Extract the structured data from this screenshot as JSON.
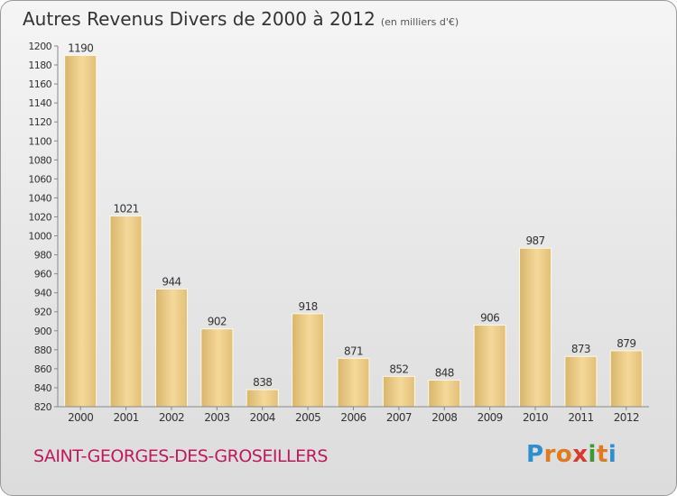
{
  "header": {
    "title": "Autres Revenus Divers de 2000 à 2012",
    "subtitle": "(en milliers d'€)"
  },
  "footer": {
    "commune": "SAINT-GEORGES-DES-GROSEILLERS",
    "logo_letters": [
      "P",
      "r",
      "o",
      "x",
      "i",
      "t",
      "i"
    ],
    "logo_colors": [
      "#2e8fce",
      "#e07a1f",
      "#e07a1f",
      "#d8392b",
      "#3a9a35",
      "#e07a1f",
      "#2e8fce"
    ]
  },
  "chart_data": {
    "type": "bar",
    "title": "Autres Revenus Divers de 2000 à 2012",
    "categories": [
      "2000",
      "2001",
      "2002",
      "2003",
      "2004",
      "2005",
      "2006",
      "2007",
      "2008",
      "2009",
      "2010",
      "2011",
      "2012"
    ],
    "values": [
      1190,
      1021,
      944,
      902,
      838,
      918,
      871,
      852,
      848,
      906,
      987,
      873,
      879
    ],
    "ylim": [
      820,
      1200
    ],
    "ytick_step": 20,
    "grid": false,
    "bar_color": "#ecc97d"
  }
}
